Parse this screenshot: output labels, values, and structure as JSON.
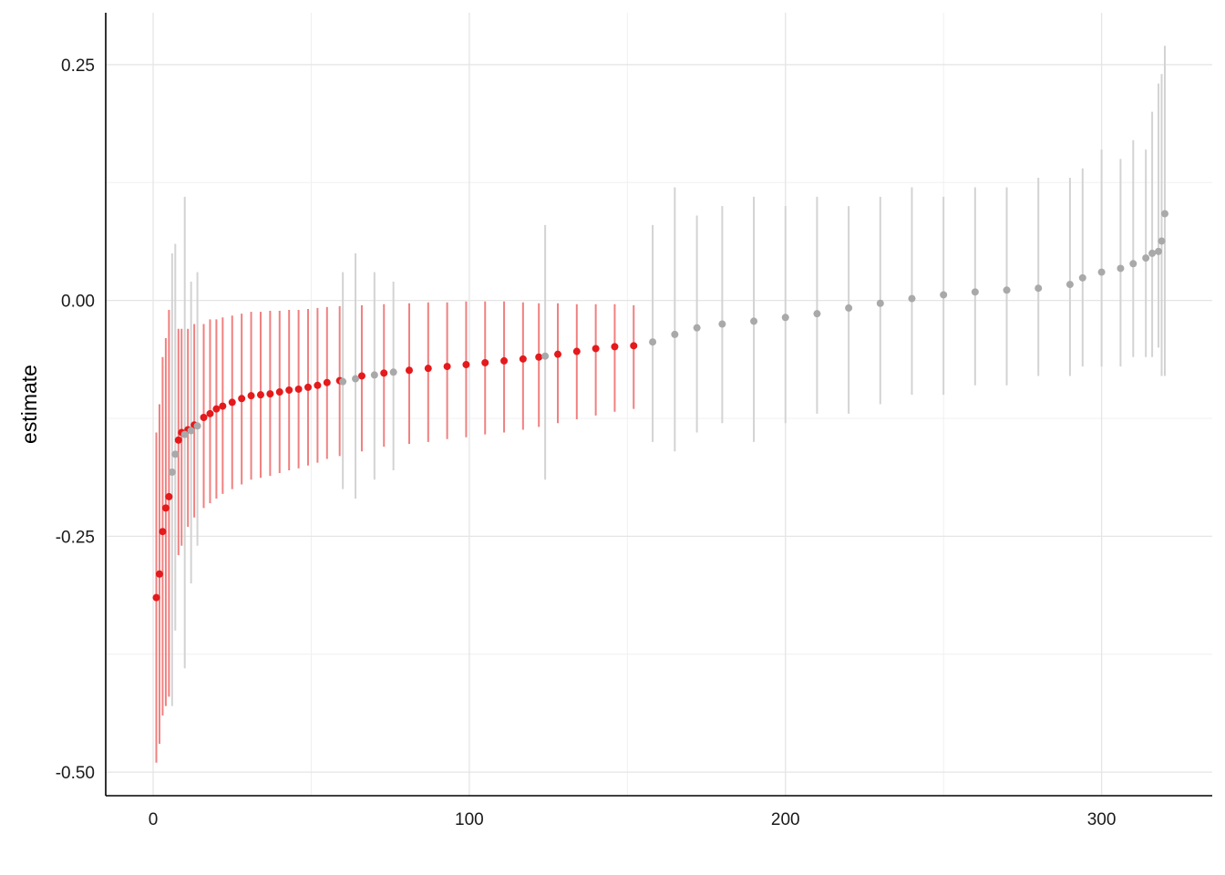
{
  "chart_data": {
    "type": "scatter",
    "title": "",
    "xlabel": "",
    "ylabel": "estimate",
    "xlim": [
      -15,
      335
    ],
    "ylim": [
      -0.525,
      0.305
    ],
    "xticks": [
      0,
      100,
      200,
      300
    ],
    "xtick_labels": [
      "0",
      "100",
      "200",
      "300"
    ],
    "yticks": [
      -0.5,
      -0.25,
      0.0,
      0.25
    ],
    "ytick_labels": [
      "-0.50",
      "-0.25",
      "0.00",
      "0.25"
    ],
    "grid": true,
    "legend": "none",
    "n_points": 320,
    "error_bars": "vertical confidence intervals around each point estimate",
    "significant_color": "#e41a1c",
    "significant_interval_color": "#f08080",
    "nonsignificant_color": "#a9a9a9",
    "nonsignificant_interval_color": "#d3d3d3",
    "series": [
      {
        "significance": "significant",
        "x": [
          1,
          2,
          3,
          4,
          5,
          8,
          9,
          11,
          13,
          16,
          18,
          20,
          22,
          25,
          28,
          31,
          34,
          37,
          40,
          43,
          46,
          49,
          52,
          55,
          59,
          66,
          73,
          81,
          87,
          93,
          99,
          105,
          111,
          117,
          122,
          128,
          134,
          140,
          146,
          152
        ],
        "estimate": [
          -0.315,
          -0.29,
          -0.245,
          -0.22,
          -0.208,
          -0.148,
          -0.14,
          -0.137,
          -0.132,
          -0.124,
          -0.12,
          -0.115,
          -0.112,
          -0.108,
          -0.104,
          -0.101,
          -0.1,
          -0.099,
          -0.097,
          -0.095,
          -0.094,
          -0.092,
          -0.09,
          -0.087,
          -0.085,
          -0.08,
          -0.077,
          -0.074,
          -0.072,
          -0.07,
          -0.068,
          -0.066,
          -0.064,
          -0.062,
          -0.06,
          -0.057,
          -0.054,
          -0.051,
          -0.049,
          -0.048
        ],
        "lower": [
          -0.49,
          -0.47,
          -0.44,
          -0.43,
          -0.42,
          -0.27,
          -0.26,
          -0.24,
          -0.23,
          -0.22,
          -0.215,
          -0.21,
          -0.205,
          -0.2,
          -0.195,
          -0.19,
          -0.188,
          -0.186,
          -0.183,
          -0.18,
          -0.178,
          -0.175,
          -0.172,
          -0.168,
          -0.165,
          -0.16,
          -0.155,
          -0.152,
          -0.15,
          -0.147,
          -0.145,
          -0.142,
          -0.14,
          -0.137,
          -0.134,
          -0.13,
          -0.126,
          -0.122,
          -0.118,
          -0.115
        ],
        "upper": [
          -0.14,
          -0.11,
          -0.06,
          -0.04,
          -0.01,
          -0.03,
          -0.03,
          -0.03,
          -0.025,
          -0.025,
          -0.02,
          -0.02,
          -0.018,
          -0.016,
          -0.014,
          -0.012,
          -0.012,
          -0.011,
          -0.011,
          -0.01,
          -0.01,
          -0.009,
          -0.008,
          -0.007,
          -0.006,
          -0.005,
          -0.004,
          -0.003,
          -0.002,
          -0.002,
          -0.001,
          -0.001,
          -0.001,
          -0.002,
          -0.003,
          -0.003,
          -0.004,
          -0.004,
          -0.004,
          -0.005
        ]
      },
      {
        "significance": "not significant",
        "x": [
          6,
          7,
          10,
          12,
          14,
          60,
          64,
          70,
          76,
          124,
          158,
          165,
          172,
          180,
          190,
          200,
          210,
          220,
          230,
          240,
          250,
          260,
          270,
          280,
          290,
          294,
          300,
          306,
          310,
          314,
          316,
          318,
          319,
          320
        ],
        "estimate": [
          -0.182,
          -0.163,
          -0.142,
          -0.138,
          -0.133,
          -0.086,
          -0.083,
          -0.079,
          -0.076,
          -0.059,
          -0.044,
          -0.036,
          -0.029,
          -0.025,
          -0.022,
          -0.018,
          -0.014,
          -0.008,
          -0.003,
          0.002,
          0.006,
          0.009,
          0.011,
          0.013,
          0.017,
          0.024,
          0.03,
          0.034,
          0.039,
          0.045,
          0.05,
          0.052,
          0.063,
          0.092
        ],
        "lower": [
          -0.43,
          -0.35,
          -0.39,
          -0.3,
          -0.26,
          -0.2,
          -0.21,
          -0.19,
          -0.18,
          -0.19,
          -0.15,
          -0.16,
          -0.14,
          -0.13,
          -0.15,
          -0.13,
          -0.12,
          -0.12,
          -0.11,
          -0.1,
          -0.1,
          -0.09,
          -0.09,
          -0.08,
          -0.08,
          -0.07,
          -0.07,
          -0.07,
          -0.06,
          -0.06,
          -0.06,
          -0.05,
          -0.08,
          -0.08
        ],
        "upper": [
          0.05,
          0.06,
          0.11,
          0.02,
          0.03,
          0.03,
          0.05,
          0.03,
          0.02,
          0.08,
          0.08,
          0.12,
          0.09,
          0.1,
          0.11,
          0.1,
          0.11,
          0.1,
          0.11,
          0.12,
          0.11,
          0.12,
          0.12,
          0.13,
          0.13,
          0.14,
          0.16,
          0.15,
          0.17,
          0.16,
          0.2,
          0.23,
          0.24,
          0.27
        ]
      }
    ]
  }
}
